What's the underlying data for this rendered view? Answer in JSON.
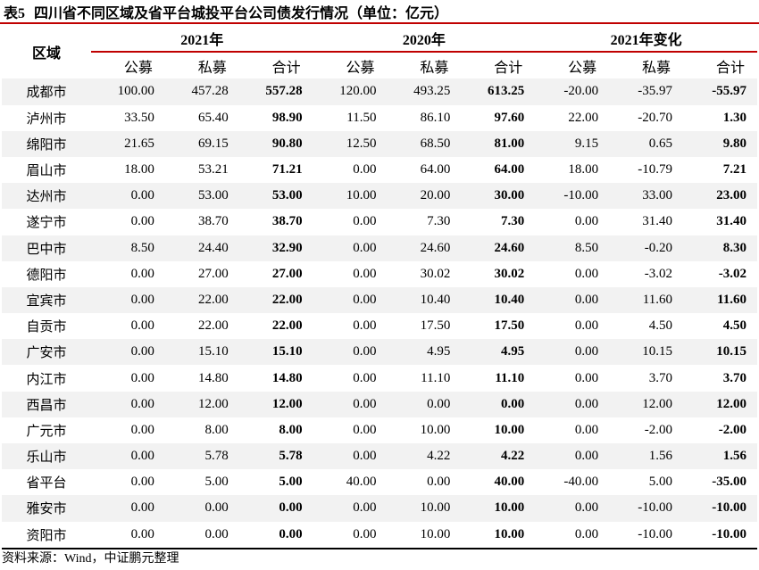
{
  "title": {
    "label": "表5",
    "text": "四川省不同区域及省平台城投平台公司债发行情况（单位：亿元）"
  },
  "header": {
    "region": "区域",
    "groups": [
      "2021年",
      "2020年",
      "2021年变化"
    ],
    "subcols": [
      "公募",
      "私募",
      "合计",
      "公募",
      "私募",
      "合计",
      "公募",
      "私募",
      "合计"
    ]
  },
  "rows": [
    {
      "region": "成都市",
      "values": [
        "100.00",
        "457.28",
        "557.28",
        "120.00",
        "493.25",
        "613.25",
        "-20.00",
        "-35.97",
        "-55.97"
      ]
    },
    {
      "region": "泸州市",
      "values": [
        "33.50",
        "65.40",
        "98.90",
        "11.50",
        "86.10",
        "97.60",
        "22.00",
        "-20.70",
        "1.30"
      ]
    },
    {
      "region": "绵阳市",
      "values": [
        "21.65",
        "69.15",
        "90.80",
        "12.50",
        "68.50",
        "81.00",
        "9.15",
        "0.65",
        "9.80"
      ]
    },
    {
      "region": "眉山市",
      "values": [
        "18.00",
        "53.21",
        "71.21",
        "0.00",
        "64.00",
        "64.00",
        "18.00",
        "-10.79",
        "7.21"
      ]
    },
    {
      "region": "达州市",
      "values": [
        "0.00",
        "53.00",
        "53.00",
        "10.00",
        "20.00",
        "30.00",
        "-10.00",
        "33.00",
        "23.00"
      ]
    },
    {
      "region": "遂宁市",
      "values": [
        "0.00",
        "38.70",
        "38.70",
        "0.00",
        "7.30",
        "7.30",
        "0.00",
        "31.40",
        "31.40"
      ]
    },
    {
      "region": "巴中市",
      "values": [
        "8.50",
        "24.40",
        "32.90",
        "0.00",
        "24.60",
        "24.60",
        "8.50",
        "-0.20",
        "8.30"
      ]
    },
    {
      "region": "德阳市",
      "values": [
        "0.00",
        "27.00",
        "27.00",
        "0.00",
        "30.02",
        "30.02",
        "0.00",
        "-3.02",
        "-3.02"
      ]
    },
    {
      "region": "宜宾市",
      "values": [
        "0.00",
        "22.00",
        "22.00",
        "0.00",
        "10.40",
        "10.40",
        "0.00",
        "11.60",
        "11.60"
      ]
    },
    {
      "region": "自贡市",
      "values": [
        "0.00",
        "22.00",
        "22.00",
        "0.00",
        "17.50",
        "17.50",
        "0.00",
        "4.50",
        "4.50"
      ]
    },
    {
      "region": "广安市",
      "values": [
        "0.00",
        "15.10",
        "15.10",
        "0.00",
        "4.95",
        "4.95",
        "0.00",
        "10.15",
        "10.15"
      ]
    },
    {
      "region": "内江市",
      "values": [
        "0.00",
        "14.80",
        "14.80",
        "0.00",
        "11.10",
        "11.10",
        "0.00",
        "3.70",
        "3.70"
      ]
    },
    {
      "region": "西昌市",
      "values": [
        "0.00",
        "12.00",
        "12.00",
        "0.00",
        "0.00",
        "0.00",
        "0.00",
        "12.00",
        "12.00"
      ]
    },
    {
      "region": "广元市",
      "values": [
        "0.00",
        "8.00",
        "8.00",
        "0.00",
        "10.00",
        "10.00",
        "0.00",
        "-2.00",
        "-2.00"
      ]
    },
    {
      "region": "乐山市",
      "values": [
        "0.00",
        "5.78",
        "5.78",
        "0.00",
        "4.22",
        "4.22",
        "0.00",
        "1.56",
        "1.56"
      ]
    },
    {
      "region": "省平台",
      "values": [
        "0.00",
        "5.00",
        "5.00",
        "40.00",
        "0.00",
        "40.00",
        "-40.00",
        "5.00",
        "-35.00"
      ]
    },
    {
      "region": "雅安市",
      "values": [
        "0.00",
        "0.00",
        "0.00",
        "0.00",
        "10.00",
        "10.00",
        "0.00",
        "-10.00",
        "-10.00"
      ]
    },
    {
      "region": "资阳市",
      "values": [
        "0.00",
        "0.00",
        "0.00",
        "0.00",
        "10.00",
        "10.00",
        "0.00",
        "-10.00",
        "-10.00"
      ]
    }
  ],
  "source": "资料来源：Wind，中证鹏元整理",
  "colors": {
    "accent_line": "#c00000",
    "stripe": "#f2f2f2"
  }
}
